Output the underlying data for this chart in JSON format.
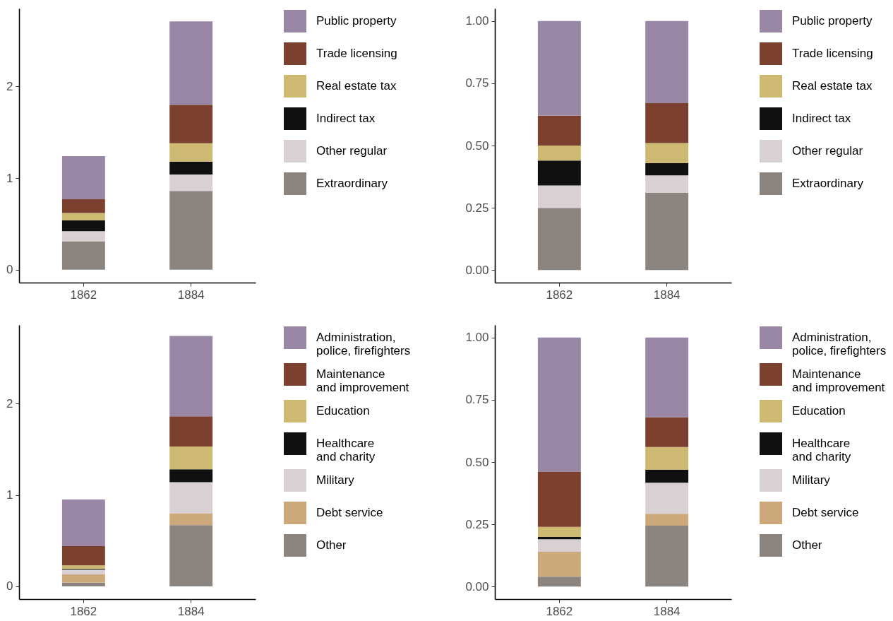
{
  "chart_data": [
    {
      "type": "bar",
      "stacked": true,
      "legend": "right",
      "categories": [
        "1862",
        "1884"
      ],
      "ylim": [
        -0.14,
        2.85
      ],
      "yticks": [
        0,
        1,
        2
      ],
      "series": [
        {
          "name": "Extraordinary",
          "color": "#8c857f",
          "values": [
            0.31,
            0.86
          ]
        },
        {
          "name": "Other regular",
          "color": "#d9d0d4",
          "values": [
            0.11,
            0.18
          ]
        },
        {
          "name": "Indirect tax",
          "color": "#111011",
          "values": [
            0.12,
            0.14
          ]
        },
        {
          "name": "Real estate tax",
          "color": "#cdb972",
          "values": [
            0.08,
            0.2
          ]
        },
        {
          "name": "Trade licensing",
          "color": "#7b412e",
          "values": [
            0.15,
            0.42
          ]
        },
        {
          "name": "Public property",
          "color": "#9a87a5",
          "values": [
            0.47,
            0.91
          ]
        }
      ]
    },
    {
      "type": "bar",
      "stacked": true,
      "legend": "right",
      "categories": [
        "1862",
        "1884"
      ],
      "ylim": [
        -0.05,
        1.05
      ],
      "yticks": [
        {
          "value": 0,
          "label": "0.00"
        },
        {
          "value": 0.25,
          "label": "0.25"
        },
        {
          "value": 0.5,
          "label": "0.50"
        },
        {
          "value": 0.75,
          "label": "0.75"
        },
        {
          "value": 1,
          "label": "1.00"
        }
      ],
      "series": [
        {
          "name": "Extraordinary",
          "color": "#8c857f",
          "values": [
            0.25,
            0.31
          ]
        },
        {
          "name": "Other regular",
          "color": "#d9d0d4",
          "values": [
            0.09,
            0.07
          ]
        },
        {
          "name": "Indirect tax",
          "color": "#111011",
          "values": [
            0.1,
            0.05
          ]
        },
        {
          "name": "Real estate tax",
          "color": "#cdb972",
          "values": [
            0.06,
            0.08
          ]
        },
        {
          "name": "Trade licensing",
          "color": "#7b412e",
          "values": [
            0.12,
            0.16
          ]
        },
        {
          "name": "Public property",
          "color": "#9a87a5",
          "values": [
            0.38,
            0.33
          ]
        }
      ]
    },
    {
      "type": "bar",
      "stacked": true,
      "legend": "right",
      "categories": [
        "1862",
        "1884"
      ],
      "ylim": [
        -0.14,
        2.86
      ],
      "yticks": [
        0,
        1,
        2
      ],
      "series": [
        {
          "name": "Other",
          "color": "#8c857f",
          "values": [
            0.04,
            0.67
          ]
        },
        {
          "name": "Debt service",
          "color": "#cda87b",
          "values": [
            0.09,
            0.13
          ]
        },
        {
          "name": "Military",
          "color": "#d9d0d4",
          "values": [
            0.05,
            0.34
          ]
        },
        {
          "name": "Healthcare\nand charity",
          "color": "#111011",
          "values": [
            0.01,
            0.14
          ]
        },
        {
          "name": "Education",
          "color": "#cdb972",
          "values": [
            0.04,
            0.25
          ]
        },
        {
          "name": "Maintenance\nand improvement",
          "color": "#7b412e",
          "values": [
            0.21,
            0.33
          ]
        },
        {
          "name": "Administration,\npolice, firefighters",
          "color": "#9a87a5",
          "values": [
            0.51,
            0.88
          ]
        }
      ]
    },
    {
      "type": "bar",
      "stacked": true,
      "legend": "right",
      "categories": [
        "1862",
        "1884"
      ],
      "ylim": [
        -0.05,
        1.05
      ],
      "yticks": [
        {
          "value": 0,
          "label": "0.00"
        },
        {
          "value": 0.25,
          "label": "0.25"
        },
        {
          "value": 0.5,
          "label": "0.50"
        },
        {
          "value": 0.75,
          "label": "0.75"
        },
        {
          "value": 1,
          "label": "1.00"
        }
      ],
      "series": [
        {
          "name": "Other",
          "color": "#8c857f",
          "values": [
            0.04,
            0.245
          ]
        },
        {
          "name": "Debt service",
          "color": "#cda87b",
          "values": [
            0.1,
            0.047
          ]
        },
        {
          "name": "Military",
          "color": "#d9d0d4",
          "values": [
            0.05,
            0.125
          ]
        },
        {
          "name": "Healthcare\nand charity",
          "color": "#111011",
          "values": [
            0.01,
            0.052
          ]
        },
        {
          "name": "Education",
          "color": "#cdb972",
          "values": [
            0.04,
            0.091
          ]
        },
        {
          "name": "Maintenance\nand improvement",
          "color": "#7b412e",
          "values": [
            0.22,
            0.12
          ]
        },
        {
          "name": "Administration,\npolice, firefighters",
          "color": "#9a87a5",
          "values": [
            0.54,
            0.32
          ]
        }
      ]
    }
  ]
}
